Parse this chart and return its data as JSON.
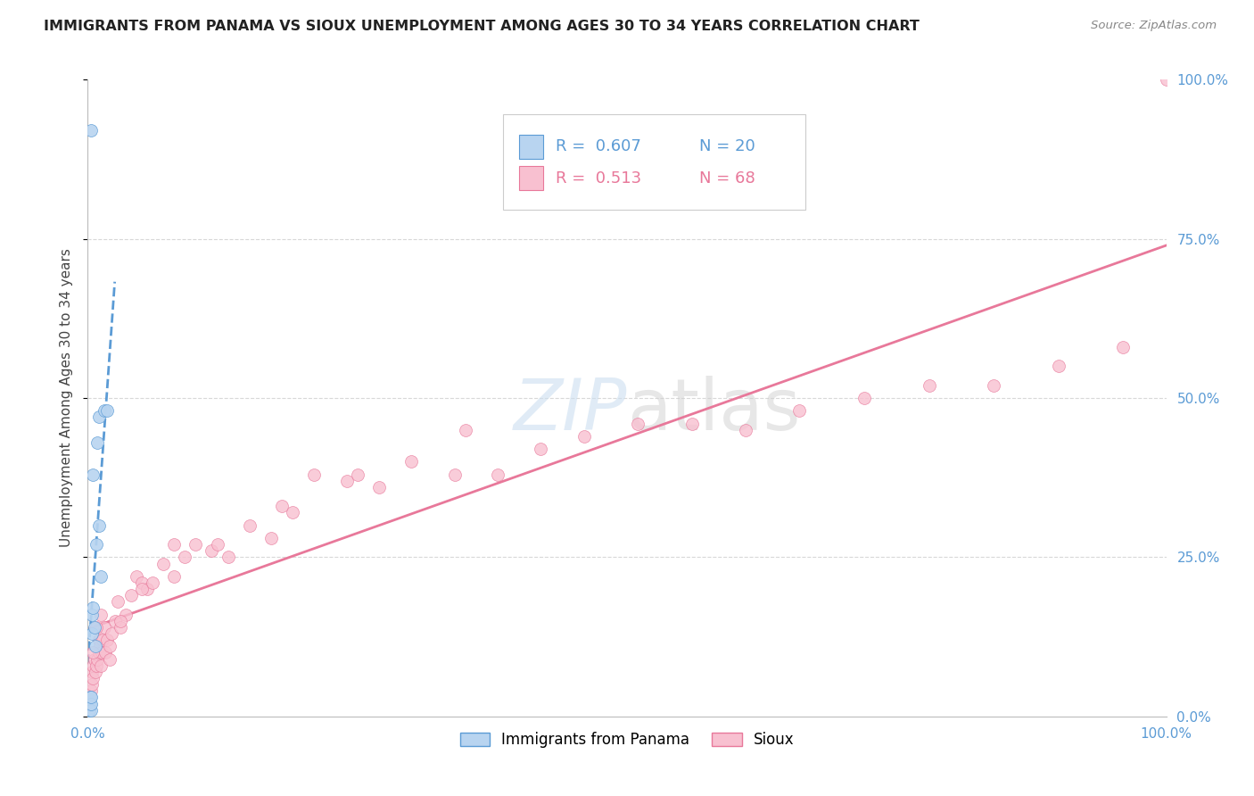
{
  "title": "IMMIGRANTS FROM PANAMA VS SIOUX UNEMPLOYMENT AMONG AGES 30 TO 34 YEARS CORRELATION CHART",
  "source": "Source: ZipAtlas.com",
  "ylabel": "Unemployment Among Ages 30 to 34 years",
  "xlim": [
    0,
    1.0
  ],
  "ylim": [
    0,
    1.0
  ],
  "background_color": "#ffffff",
  "grid_color": "#d8d8d8",
  "series1_color": "#b8d4f0",
  "series1_line_color": "#5b9bd5",
  "series2_color": "#f8c0d0",
  "series2_line_color": "#e8789a",
  "legend_r1": "0.607",
  "legend_n1": "20",
  "legend_r2": "0.513",
  "legend_n2": "68",
  "panama_x": [
    0.001,
    0.002,
    0.002,
    0.003,
    0.003,
    0.003,
    0.004,
    0.004,
    0.005,
    0.005,
    0.006,
    0.007,
    0.008,
    0.009,
    0.01,
    0.01,
    0.012,
    0.015,
    0.018,
    0.003
  ],
  "panama_y": [
    0.01,
    0.02,
    0.03,
    0.01,
    0.02,
    0.92,
    0.13,
    0.16,
    0.17,
    0.38,
    0.14,
    0.11,
    0.27,
    0.43,
    0.3,
    0.47,
    0.22,
    0.48,
    0.48,
    0.03
  ],
  "sioux_x": [
    0.002,
    0.003,
    0.004,
    0.004,
    0.005,
    0.005,
    0.006,
    0.007,
    0.008,
    0.009,
    0.01,
    0.01,
    0.011,
    0.012,
    0.013,
    0.014,
    0.015,
    0.016,
    0.018,
    0.02,
    0.022,
    0.025,
    0.028,
    0.03,
    0.035,
    0.04,
    0.045,
    0.05,
    0.055,
    0.06,
    0.07,
    0.08,
    0.09,
    0.1,
    0.115,
    0.13,
    0.15,
    0.17,
    0.19,
    0.21,
    0.24,
    0.27,
    0.3,
    0.34,
    0.38,
    0.42,
    0.46,
    0.51,
    0.56,
    0.61,
    0.66,
    0.72,
    0.78,
    0.84,
    0.9,
    0.96,
    0.005,
    0.008,
    0.012,
    0.02,
    0.03,
    0.05,
    0.08,
    0.12,
    0.18,
    0.25,
    0.35,
    1.0
  ],
  "sioux_y": [
    0.03,
    0.04,
    0.05,
    0.07,
    0.06,
    0.08,
    0.09,
    0.07,
    0.08,
    0.09,
    0.1,
    0.12,
    0.11,
    0.08,
    0.1,
    0.12,
    0.14,
    0.1,
    0.12,
    0.11,
    0.13,
    0.15,
    0.18,
    0.14,
    0.16,
    0.19,
    0.22,
    0.21,
    0.2,
    0.21,
    0.24,
    0.22,
    0.25,
    0.27,
    0.26,
    0.25,
    0.3,
    0.28,
    0.32,
    0.38,
    0.37,
    0.36,
    0.4,
    0.38,
    0.38,
    0.42,
    0.44,
    0.46,
    0.46,
    0.45,
    0.48,
    0.5,
    0.52,
    0.52,
    0.55,
    0.58,
    0.1,
    0.14,
    0.16,
    0.09,
    0.15,
    0.2,
    0.27,
    0.27,
    0.33,
    0.38,
    0.45,
    1.0
  ]
}
